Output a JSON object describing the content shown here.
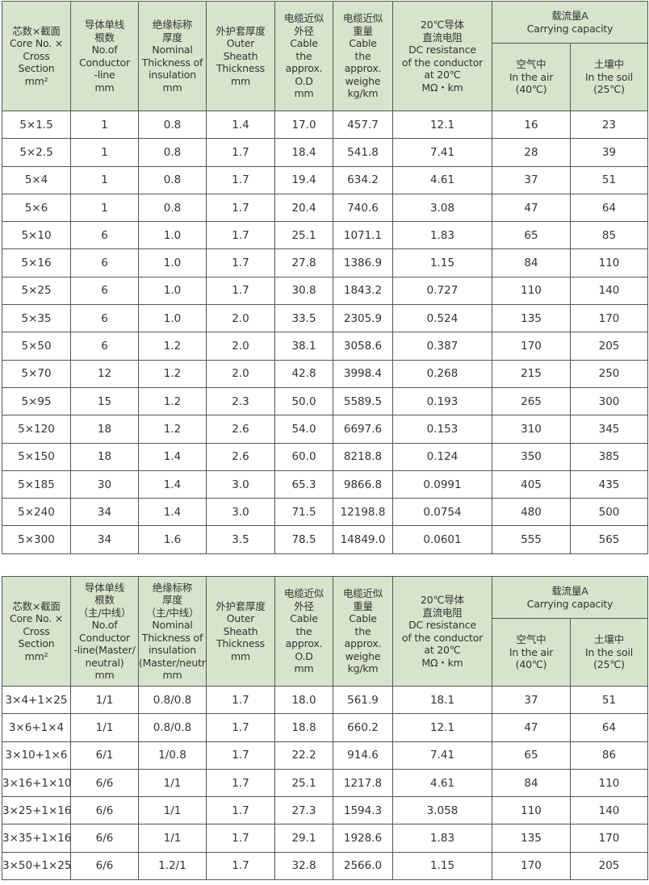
{
  "tables": [
    {
      "header": {
        "columns": [
          "芯数×截面\nCore No. ×\nCross\nSection\nmm²",
          "导体单线\n根数\nNo.of\nConductor\n-line\nmm",
          "绝缘标称\n厚度\nNominal\nThickness of\ninsulation\nmm",
          "外护套厚度\nOuter\nSheath\nThickness\nmm",
          "电缆近似\n外径\nCable\nthe\napprox.\nO.D\nmm",
          "电缆近似\n重量\nCable\nthe\napprox.\nweighe\nkg/km",
          "20℃导体\n直流电阻\nDC resistance\nof the conductor\nat 20℃\nMΩ・km"
        ],
        "group": "载流量A\nCarrying capacity",
        "sub": [
          "空气中\nIn the air\n(40℃)",
          "土壤中\nIn the soil\n(25℃)"
        ]
      },
      "rows": [
        [
          "5×1.5",
          "1",
          "0.8",
          "1.4",
          "17.0",
          "457.7",
          "12.1",
          "16",
          "23"
        ],
        [
          "5×2.5",
          "1",
          "0.8",
          "1.7",
          "18.4",
          "541.8",
          "7.41",
          "28",
          "39"
        ],
        [
          "5×4",
          "1",
          "0.8",
          "1.7",
          "19.4",
          "634.2",
          "4.61",
          "37",
          "51"
        ],
        [
          "5×6",
          "1",
          "0.8",
          "1.7",
          "20.4",
          "740.6",
          "3.08",
          "47",
          "64"
        ],
        [
          "5×10",
          "6",
          "1.0",
          "1.7",
          "25.1",
          "1071.1",
          "1.83",
          "65",
          "85"
        ],
        [
          "5×16",
          "6",
          "1.0",
          "1.7",
          "27.8",
          "1386.9",
          "1.15",
          "84",
          "110"
        ],
        [
          "5×25",
          "6",
          "1.0",
          "1.7",
          "30.8",
          "1843.2",
          "0.727",
          "110",
          "140"
        ],
        [
          "5×35",
          "6",
          "1.0",
          "2.0",
          "33.5",
          "2305.9",
          "0.524",
          "135",
          "170"
        ],
        [
          "5×50",
          "6",
          "1.2",
          "2.0",
          "38.1",
          "3058.6",
          "0.387",
          "170",
          "205"
        ],
        [
          "5×70",
          "12",
          "1.2",
          "2.0",
          "42.8",
          "3998.4",
          "0.268",
          "215",
          "250"
        ],
        [
          "5×95",
          "15",
          "1.2",
          "2.3",
          "50.0",
          "5589.5",
          "0.193",
          "265",
          "300"
        ],
        [
          "5×120",
          "18",
          "1.2",
          "2.6",
          "54.0",
          "6697.6",
          "0.153",
          "310",
          "345"
        ],
        [
          "5×150",
          "18",
          "1.4",
          "2.6",
          "60.0",
          "8218.8",
          "0.124",
          "350",
          "385"
        ],
        [
          "5×185",
          "30",
          "1.4",
          "3.0",
          "65.3",
          "9866.8",
          "0.0991",
          "405",
          "435"
        ],
        [
          "5×240",
          "34",
          "1.4",
          "3.0",
          "71.5",
          "12198.8",
          "0.0754",
          "480",
          "500"
        ],
        [
          "5×300",
          "34",
          "1.6",
          "3.5",
          "78.5",
          "14849.0",
          "0.0601",
          "555",
          "565"
        ]
      ]
    },
    {
      "header": {
        "columns": [
          "芯数×截面\nCore No. ×\nCross\nSection\nmm²",
          "导体单线\n根数\n（主/中线）\nNo.of\nConductor\n-line(Master/\nneutral)\nmm",
          "绝缘标称\n厚度\n（主/中线）\nNominal\nThickness of\ninsulation\n(Master/neutral)\nmm",
          "外护套厚度\nOuter\nSheath\nThickness\nmm",
          "电缆近似\n外径\nCable\nthe\napprox.\nO.D\nmm",
          "电缆近似\n重量\nCable\nthe\napprox.\nweighe\nkg/km",
          "20℃导体\n直流电阻\nDC resistance\nof the conductor\nat 20℃\nMΩ・km"
        ],
        "group": "载流量A\nCarrying capacity",
        "sub": [
          "空气中\nIn the air\n(40℃)",
          "土壤中\nIn the soil\n(25℃)"
        ]
      },
      "rows": [
        [
          "3×4+1×25",
          "1/1",
          "0.8/0.8",
          "1.7",
          "18.0",
          "561.9",
          "18.1",
          "37",
          "51"
        ],
        [
          "3×6+1×4",
          "1/1",
          "0.8/0.8",
          "1.7",
          "18.8",
          "660.2",
          "12.1",
          "47",
          "64"
        ],
        [
          "3×10+1×6",
          "6/1",
          "1/0.8",
          "1.7",
          "22.2",
          "914.6",
          "7.41",
          "65",
          "86"
        ],
        [
          "3×16+1×10",
          "6/6",
          "1/1",
          "1.7",
          "25.1",
          "1217.8",
          "4.61",
          "84",
          "110"
        ],
        [
          "3×25+1×16",
          "6/6",
          "1/1",
          "1.7",
          "27.3",
          "1594.3",
          "3.058",
          "110",
          "140"
        ],
        [
          "3×35+1×16",
          "6/6",
          "1/1",
          "1.7",
          "29.1",
          "1928.6",
          "1.83",
          "135",
          "170"
        ],
        [
          "3×50+1×25",
          "6/6",
          "1.2/1",
          "1.7",
          "32.8",
          "2566.0",
          "1.15",
          "170",
          "205"
        ]
      ]
    }
  ]
}
